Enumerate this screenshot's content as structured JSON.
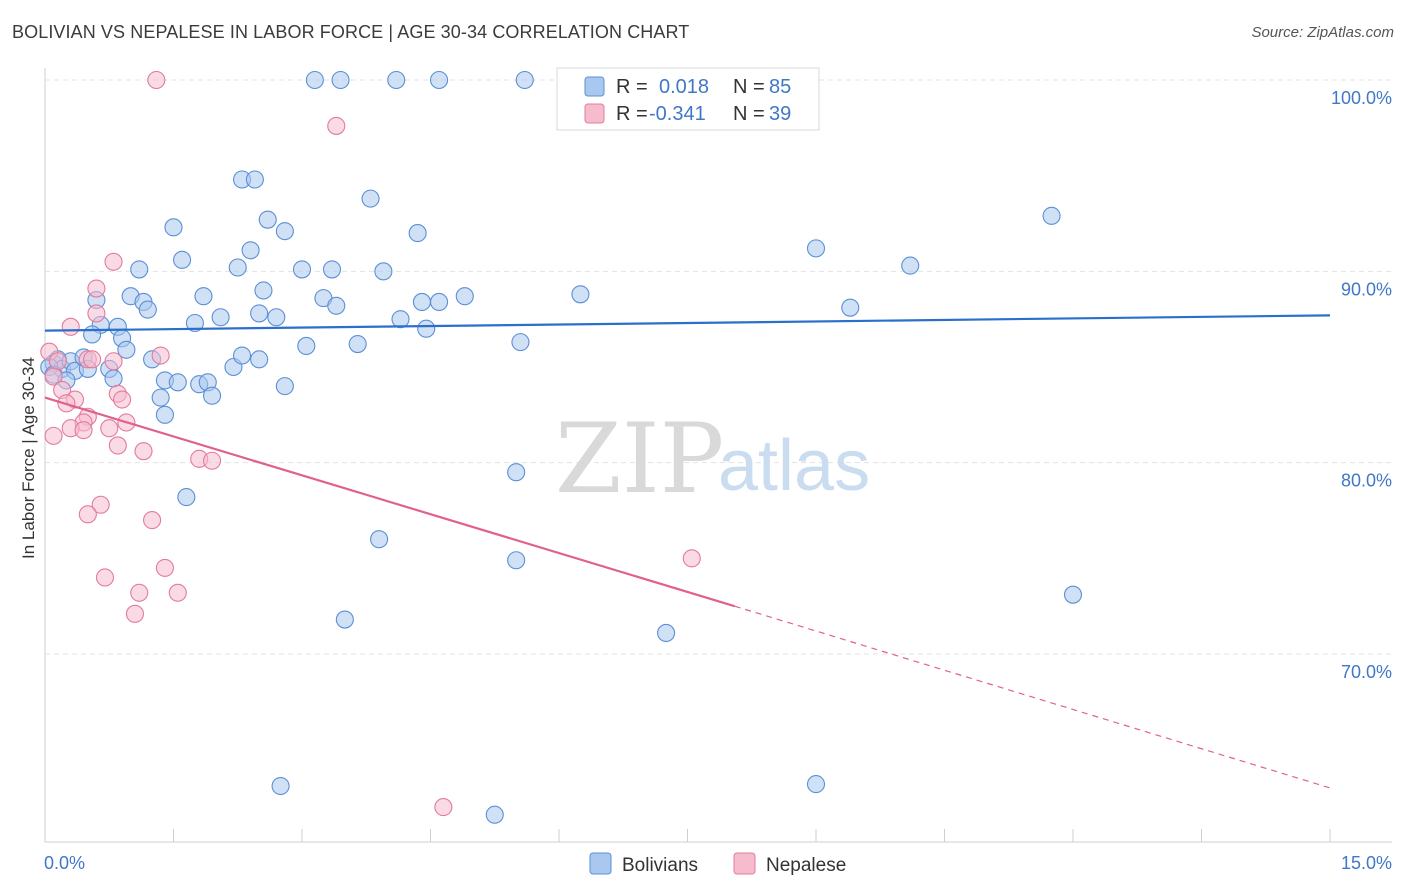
{
  "title": "BOLIVIAN VS NEPALESE IN LABOR FORCE | AGE 30-34 CORRELATION CHART",
  "source": "Source: ZipAtlas.com",
  "watermark": {
    "zip": "ZIP",
    "atlas": "atlas"
  },
  "colors": {
    "blue_fill": "#a9c8ef",
    "blue_stroke": "#5b8fd6",
    "blue_line": "#2a6fcb",
    "pink_fill": "#f6bccd",
    "pink_stroke": "#e27c9c",
    "pink_line": "#e0628c",
    "grid": "#e3e3e3",
    "axis_text": "#3f78c8"
  },
  "legend": {
    "r_label": "R =",
    "n_label": "N =",
    "entries": [
      {
        "r": "0.018",
        "n": "85"
      },
      {
        "r": "-0.341",
        "n": "39"
      }
    ]
  },
  "bottom_legend": [
    "Bolivians",
    "Nepalese"
  ],
  "chart_data": {
    "type": "scatter",
    "ylabel": "In Labor Force | Age 30-34",
    "xlim": [
      0,
      15
    ],
    "ylim": [
      61,
      102
    ],
    "x_tick_labels": [
      "0.0%",
      "15.0%"
    ],
    "y_ticks": [
      {
        "value": 100,
        "label": "100.0%"
      },
      {
        "value": 90,
        "label": "90.0%"
      },
      {
        "value": 80,
        "label": "80.0%"
      },
      {
        "value": 70,
        "label": "70.0%"
      }
    ],
    "grid": "horizontal dashed",
    "series": [
      {
        "name": "Bolivians",
        "points": [
          [
            3.15,
            100
          ],
          [
            3.45,
            100
          ],
          [
            4.1,
            100
          ],
          [
            4.6,
            100
          ],
          [
            5.6,
            100
          ],
          [
            6.45,
            100
          ],
          [
            8.2,
            100
          ],
          [
            2.3,
            94.8
          ],
          [
            2.45,
            94.8
          ],
          [
            3.8,
            93.8
          ],
          [
            1.5,
            92.3
          ],
          [
            2.6,
            92.7
          ],
          [
            2.8,
            92.1
          ],
          [
            4.35,
            92
          ],
          [
            11.75,
            92.9
          ],
          [
            1.6,
            90.6
          ],
          [
            2.25,
            90.2
          ],
          [
            2.4,
            91.1
          ],
          [
            3.0,
            90.1
          ],
          [
            3.35,
            90.1
          ],
          [
            3.95,
            90.0
          ],
          [
            9.0,
            91.2
          ],
          [
            10.1,
            90.3
          ],
          [
            1.1,
            90.1
          ],
          [
            0.6,
            88.5
          ],
          [
            1.0,
            88.7
          ],
          [
            1.15,
            88.4
          ],
          [
            1.2,
            88.0
          ],
          [
            1.85,
            88.7
          ],
          [
            2.55,
            89.0
          ],
          [
            3.25,
            88.6
          ],
          [
            3.4,
            88.2
          ],
          [
            4.4,
            88.4
          ],
          [
            4.6,
            88.4
          ],
          [
            4.9,
            88.7
          ],
          [
            6.25,
            88.8
          ],
          [
            9.4,
            88.1
          ],
          [
            0.65,
            87.2
          ],
          [
            0.55,
            86.7
          ],
          [
            0.85,
            87.1
          ],
          [
            0.9,
            86.5
          ],
          [
            1.75,
            87.3
          ],
          [
            2.05,
            87.6
          ],
          [
            2.5,
            87.8
          ],
          [
            2.7,
            87.6
          ],
          [
            3.05,
            86.1
          ],
          [
            3.65,
            86.2
          ],
          [
            4.15,
            87.5
          ],
          [
            4.45,
            87.0
          ],
          [
            5.55,
            86.3
          ],
          [
            0.1,
            85.2
          ],
          [
            0.15,
            85.4
          ],
          [
            0.2,
            84.9
          ],
          [
            0.3,
            85.3
          ],
          [
            0.35,
            84.8
          ],
          [
            0.45,
            85.5
          ],
          [
            0.5,
            84.9
          ],
          [
            0.75,
            84.9
          ],
          [
            0.8,
            84.4
          ],
          [
            0.95,
            85.9
          ],
          [
            1.25,
            85.4
          ],
          [
            1.4,
            84.3
          ],
          [
            1.55,
            84.2
          ],
          [
            1.8,
            84.1
          ],
          [
            1.9,
            84.2
          ],
          [
            2.2,
            85.0
          ],
          [
            2.3,
            85.6
          ],
          [
            2.5,
            85.4
          ],
          [
            2.8,
            84.0
          ],
          [
            0.05,
            85.0
          ],
          [
            0.1,
            84.6
          ],
          [
            1.35,
            83.4
          ],
          [
            1.95,
            83.5
          ],
          [
            1.4,
            82.5
          ],
          [
            5.5,
            79.5
          ],
          [
            1.65,
            78.2
          ],
          [
            3.9,
            76.0
          ],
          [
            5.5,
            74.9
          ],
          [
            12.0,
            73.1
          ],
          [
            3.5,
            71.8
          ],
          [
            7.25,
            71.1
          ],
          [
            2.75,
            63.1
          ],
          [
            9.0,
            63.2
          ],
          [
            5.25,
            61.6
          ],
          [
            0.25,
            84.3
          ]
        ],
        "trend": {
          "x": [
            0,
            15
          ],
          "y": [
            86.9,
            87.7
          ],
          "r": 0.018,
          "n": 85
        }
      },
      {
        "name": "Nepalese",
        "points": [
          [
            1.3,
            100
          ],
          [
            3.4,
            97.6
          ],
          [
            0.8,
            90.5
          ],
          [
            0.6,
            89.1
          ],
          [
            0.6,
            87.8
          ],
          [
            0.3,
            87.1
          ],
          [
            0.05,
            85.8
          ],
          [
            0.15,
            85.3
          ],
          [
            0.5,
            85.4
          ],
          [
            0.55,
            85.4
          ],
          [
            0.8,
            85.3
          ],
          [
            1.35,
            85.6
          ],
          [
            0.1,
            84.5
          ],
          [
            0.2,
            83.8
          ],
          [
            0.35,
            83.3
          ],
          [
            0.25,
            83.1
          ],
          [
            0.85,
            83.6
          ],
          [
            0.9,
            83.3
          ],
          [
            0.5,
            82.4
          ],
          [
            0.45,
            82.1
          ],
          [
            0.3,
            81.8
          ],
          [
            0.45,
            81.7
          ],
          [
            0.75,
            81.8
          ],
          [
            0.95,
            82.1
          ],
          [
            0.1,
            81.4
          ],
          [
            0.85,
            80.9
          ],
          [
            1.15,
            80.6
          ],
          [
            1.8,
            80.2
          ],
          [
            1.95,
            80.1
          ],
          [
            0.65,
            77.8
          ],
          [
            0.5,
            77.3
          ],
          [
            1.25,
            77.0
          ],
          [
            7.55,
            75.0
          ],
          [
            0.7,
            74.0
          ],
          [
            1.4,
            74.5
          ],
          [
            1.1,
            73.2
          ],
          [
            1.55,
            73.2
          ],
          [
            1.05,
            72.1
          ],
          [
            4.65,
            62.0
          ]
        ],
        "trend": {
          "x": [
            0,
            8.05
          ],
          "y": [
            83.4,
            72.5
          ],
          "dashed_to": [
            15,
            63.0
          ],
          "r": -0.341,
          "n": 39
        }
      }
    ]
  }
}
